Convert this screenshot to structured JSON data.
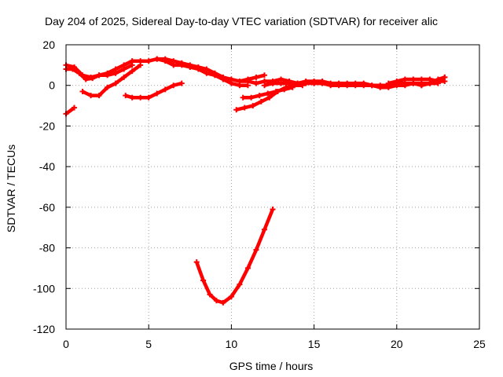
{
  "chart_data": {
    "type": "scatter",
    "title": "Day 204 of 2025, Sidereal Day-to-day VTEC variation (SDTVAR) for receiver alic",
    "xlabel": "GPS time / hours",
    "ylabel": "SDTVAR / TECUs",
    "xlim": [
      0,
      25
    ],
    "ylim": [
      -120,
      20
    ],
    "xticks": [
      0,
      5,
      10,
      15,
      20,
      25
    ],
    "yticks": [
      -120,
      -100,
      -80,
      -60,
      -40,
      -20,
      0,
      20
    ],
    "grid": true,
    "series_color": "#ff0000",
    "series": [
      {
        "points": [
          [
            0,
            8
          ],
          [
            0.4,
            8
          ],
          [
            0.8,
            6
          ],
          [
            1.2,
            3
          ],
          [
            1.6,
            3.5
          ],
          [
            2.0,
            5
          ],
          [
            2.5,
            6
          ],
          [
            3.0,
            8
          ],
          [
            3.5,
            10
          ],
          [
            4.0,
            12
          ],
          [
            4.5,
            12
          ],
          [
            5.0,
            12
          ],
          [
            5.5,
            13
          ],
          [
            6.0,
            12
          ],
          [
            6.5,
            10
          ],
          [
            7.0,
            10
          ],
          [
            7.5,
            9
          ],
          [
            8.0,
            8
          ],
          [
            8.5,
            6
          ],
          [
            9.0,
            5
          ],
          [
            9.5,
            3
          ],
          [
            10.0,
            1
          ],
          [
            10.5,
            0
          ],
          [
            11.0,
            0
          ]
        ]
      },
      {
        "points": [
          [
            0,
            10
          ],
          [
            0.5,
            9
          ],
          [
            1.0,
            5
          ],
          [
            1.5,
            4
          ],
          [
            2.0,
            5
          ],
          [
            2.5,
            5
          ],
          [
            3.0,
            6
          ],
          [
            3.5,
            8
          ],
          [
            4.0,
            10
          ]
        ]
      },
      {
        "points": [
          [
            1.0,
            -3
          ],
          [
            1.5,
            -5
          ],
          [
            2.0,
            -5
          ],
          [
            2.5,
            -1
          ],
          [
            3.0,
            1
          ],
          [
            3.5,
            4
          ],
          [
            4.0,
            7
          ],
          [
            4.5,
            10
          ]
        ]
      },
      {
        "points": [
          [
            3.6,
            -5
          ],
          [
            4.0,
            -6
          ],
          [
            4.5,
            -6
          ],
          [
            5.0,
            -6
          ],
          [
            5.5,
            -4
          ],
          [
            6.0,
            -2
          ],
          [
            6.5,
            0
          ],
          [
            7.0,
            1
          ]
        ]
      },
      {
        "points": [
          [
            0,
            -14
          ],
          [
            0.5,
            -11
          ]
        ]
      },
      {
        "points": [
          [
            5.5,
            13
          ],
          [
            6.0,
            13
          ],
          [
            6.5,
            12
          ],
          [
            7.0,
            11
          ],
          [
            7.5,
            10
          ],
          [
            8.0,
            9
          ],
          [
            8.5,
            8
          ],
          [
            9.0,
            6
          ],
          [
            9.5,
            4
          ],
          [
            10.0,
            3
          ],
          [
            10.5,
            2
          ],
          [
            11.0,
            3
          ],
          [
            11.5,
            4
          ],
          [
            12.0,
            5
          ]
        ]
      },
      {
        "points": [
          [
            7.9,
            -87
          ],
          [
            8.3,
            -96
          ],
          [
            8.7,
            -103
          ],
          [
            9.1,
            -106
          ],
          [
            9.5,
            -107
          ],
          [
            10.0,
            -104
          ],
          [
            10.5,
            -98
          ],
          [
            11.0,
            -90
          ],
          [
            11.5,
            -81
          ],
          [
            12.0,
            -71
          ],
          [
            12.5,
            -61
          ]
        ]
      },
      {
        "points": [
          [
            10.3,
            -12
          ],
          [
            10.8,
            -11
          ],
          [
            11.3,
            -10
          ],
          [
            11.8,
            -8
          ],
          [
            12.3,
            -6
          ],
          [
            12.8,
            -3
          ],
          [
            13.3,
            -1
          ],
          [
            13.8,
            0
          ],
          [
            14.3,
            0
          ]
        ]
      },
      {
        "points": [
          [
            10.7,
            -6
          ],
          [
            11.2,
            -6
          ],
          [
            11.7,
            -5
          ],
          [
            12.2,
            -4
          ],
          [
            12.7,
            -3
          ],
          [
            13.2,
            -2
          ],
          [
            13.7,
            -1
          ]
        ]
      },
      {
        "points": [
          [
            10.5,
            2
          ],
          [
            11.0,
            2
          ],
          [
            11.5,
            1
          ],
          [
            12.0,
            2
          ],
          [
            12.5,
            2
          ],
          [
            13.0,
            3
          ],
          [
            13.5,
            2
          ],
          [
            14.0,
            1
          ],
          [
            14.5,
            2
          ],
          [
            15.0,
            2
          ],
          [
            15.5,
            2
          ],
          [
            16.0,
            1
          ],
          [
            16.5,
            1
          ],
          [
            17.0,
            1
          ],
          [
            17.5,
            1
          ],
          [
            18.0,
            1
          ],
          [
            18.5,
            0
          ],
          [
            19.0,
            0
          ],
          [
            19.5,
            0
          ],
          [
            20.0,
            1
          ],
          [
            20.5,
            1
          ],
          [
            21.0,
            1
          ],
          [
            21.5,
            1
          ],
          [
            22.0,
            1
          ],
          [
            22.5,
            1
          ]
        ]
      },
      {
        "points": [
          [
            12.0,
            0
          ],
          [
            12.5,
            1
          ],
          [
            13.0,
            1
          ],
          [
            13.5,
            1
          ],
          [
            14.0,
            1
          ],
          [
            14.5,
            1
          ],
          [
            15.0,
            1
          ],
          [
            15.5,
            1
          ],
          [
            16.0,
            0
          ],
          [
            16.5,
            0
          ],
          [
            17.0,
            0
          ],
          [
            17.5,
            0
          ],
          [
            18.0,
            0
          ],
          [
            18.5,
            0
          ],
          [
            19.0,
            -1
          ],
          [
            19.5,
            -1
          ],
          [
            20.0,
            0
          ],
          [
            20.5,
            0
          ],
          [
            21.0,
            1
          ],
          [
            21.5,
            0
          ],
          [
            22.0,
            1
          ],
          [
            22.5,
            2
          ],
          [
            22.9,
            4
          ]
        ]
      },
      {
        "points": [
          [
            19.5,
            1
          ],
          [
            20.0,
            2
          ],
          [
            20.5,
            3
          ],
          [
            21.0,
            3
          ],
          [
            21.5,
            3
          ],
          [
            22.0,
            3
          ],
          [
            22.5,
            2
          ],
          [
            22.9,
            2
          ]
        ]
      },
      {
        "points": [
          [
            21.5,
            0
          ],
          [
            22.0,
            1
          ],
          [
            22.5,
            3
          ],
          [
            22.9,
            4
          ]
        ]
      }
    ]
  }
}
